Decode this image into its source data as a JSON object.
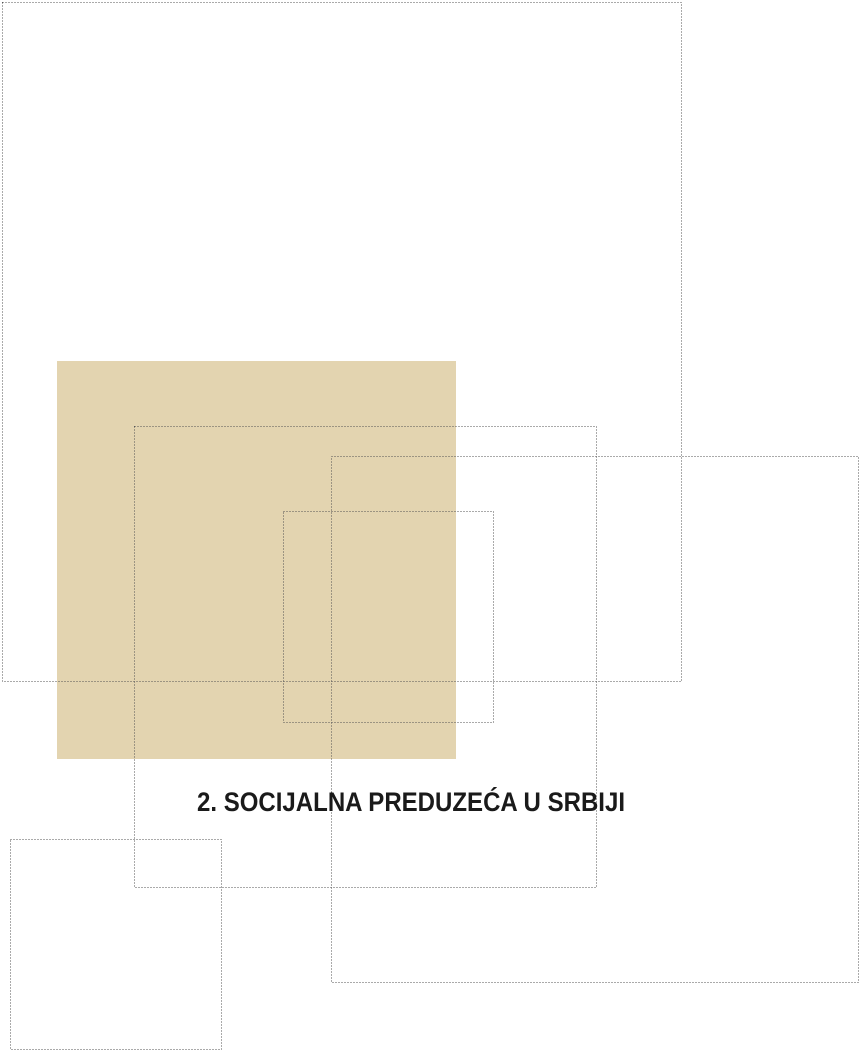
{
  "heading": "2. SOCIJALNA PREDUZEĆA U SRBIJI"
}
